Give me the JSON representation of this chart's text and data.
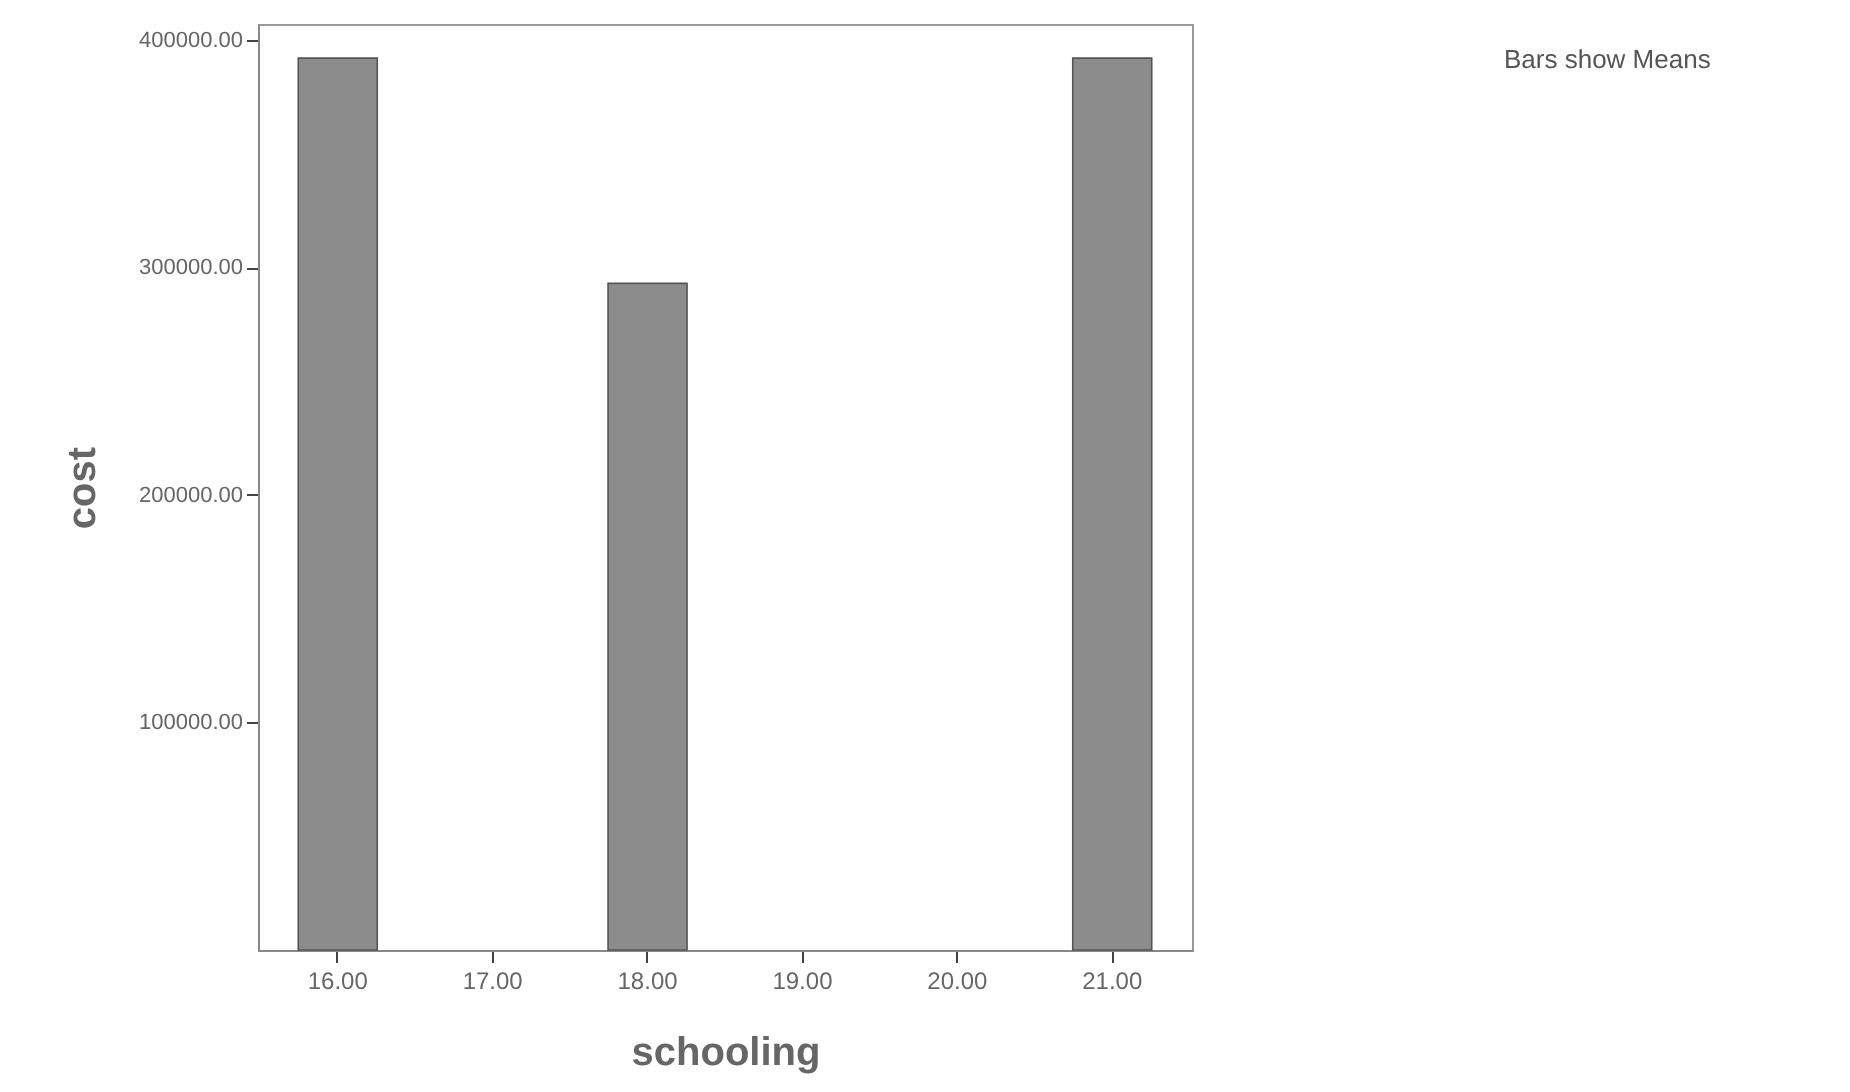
{
  "chart_data": {
    "type": "bar",
    "xlabel": "schooling",
    "ylabel": "cost",
    "categories": [
      "16.00",
      "17.00",
      "18.00",
      "19.00",
      "20.00",
      "21.00"
    ],
    "values": [
      392000,
      null,
      293000,
      null,
      null,
      392000
    ],
    "color": "#8c8c8c",
    "ylim": [
      0,
      407000
    ],
    "yticks": [
      {
        "value": 100000,
        "label": "100000.00"
      },
      {
        "value": 200000,
        "label": "200000.00"
      },
      {
        "value": 300000,
        "label": "300000.00"
      },
      {
        "value": 400000,
        "label": "400000.00"
      }
    ],
    "annotations": [
      "Bars show Means"
    ],
    "grid": false
  }
}
